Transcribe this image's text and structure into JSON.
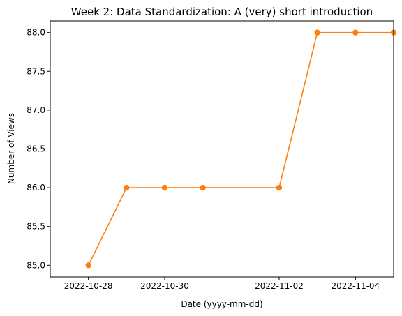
{
  "chart_data": {
    "type": "line",
    "title": "Week 2: Data Standardization: A (very) short introduction",
    "xlabel": "Date (yyyy-mm-dd)",
    "ylabel": "Number of Views",
    "x": [
      "2022-10-28",
      "2022-10-29",
      "2022-10-30",
      "2022-10-31",
      "2022-11-02",
      "2022-11-03",
      "2022-11-04",
      "2022-11-05"
    ],
    "series": [
      {
        "values": [
          85,
          86,
          86,
          86,
          86,
          88,
          88,
          88
        ],
        "color": "#ff7f0e"
      }
    ],
    "xlim": [
      "2022-10-27",
      "2022-11-05"
    ],
    "ylim": [
      84.85,
      88.15
    ],
    "x_ticks": [
      "2022-10-28",
      "2022-10-30",
      "2022-11-02",
      "2022-11-04"
    ],
    "y_ticks": [
      "85.0",
      "85.5",
      "86.0",
      "86.5",
      "87.0",
      "87.5",
      "88.0"
    ],
    "grid": false,
    "markers": true
  }
}
